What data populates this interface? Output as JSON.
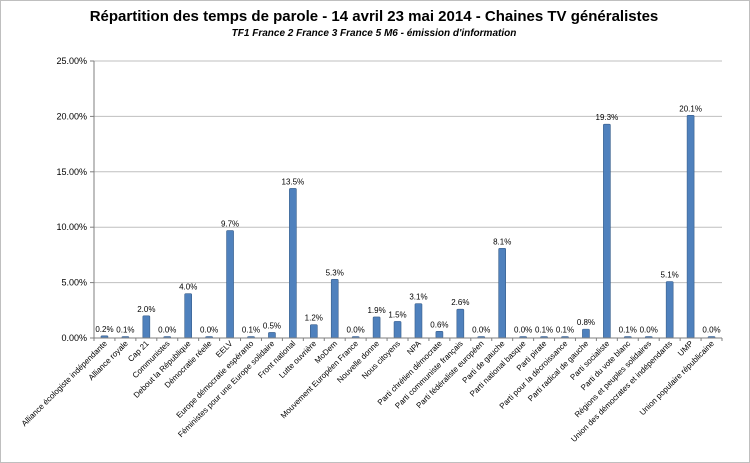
{
  "chart_data": {
    "type": "bar",
    "title": "Répartition des temps de parole - 14 avril 23 mai 2014 - Chaines TV généralistes",
    "subtitle": "TF1 France 2 France 3 France 5 M6 - émission d'information",
    "xlabel": "",
    "ylabel": "",
    "ylim": [
      0,
      25
    ],
    "yticks": [
      "0.00%",
      "5.00%",
      "10.00%",
      "15.00%",
      "20.00%",
      "25.00%"
    ],
    "grid": true,
    "legend": "none",
    "bar_color": "#4f81bd",
    "categories": [
      "Alliance écologiste indépendante",
      "Alliance royale",
      "Cap 21",
      "Communistes",
      "Debout la République",
      "Démocratie réelle",
      "EELV",
      "Europe démocratie espéranto",
      "Féministes pour une Europe solidaire",
      "Front national",
      "Lutte ouvrière",
      "MoDem",
      "Mouvement Européen France",
      "Nouvelle donne",
      "Nous citoyens",
      "NPA",
      "Parti chrétien démocrate",
      "Parti communiste français",
      "Parti fédéraliste européen",
      "Parti de gauche",
      "Parti national basque",
      "Parti pirate",
      "Parti pour la décroissance",
      "Parti radical de gauche",
      "Parti socialiste",
      "Parti du vote blanc",
      "Régions et peuples solidaires",
      "Union des démocrates et indépendants",
      "UMP",
      "Union populaire républicaine"
    ],
    "values": [
      0.2,
      0.1,
      2.0,
      0.0,
      4.0,
      0.0,
      9.7,
      0.1,
      0.5,
      13.5,
      1.2,
      5.3,
      0.0,
      1.9,
      1.5,
      3.1,
      0.6,
      2.6,
      0.0,
      8.1,
      0.0,
      0.1,
      0.1,
      0.8,
      19.3,
      0.1,
      0.0,
      5.1,
      20.1,
      0.0
    ],
    "data_labels": [
      "0.2%",
      "0.1%",
      "2.0%",
      "0.0%",
      "4.0%",
      "0.0%",
      "9.7%",
      "0.1%",
      "0.5%",
      "13.5%",
      "1.2%",
      "5.3%",
      "0.0%",
      "1.9%",
      "1.5%",
      "3.1%",
      "0.6%",
      "2.6%",
      "0.0%",
      "8.1%",
      "0.0%",
      "0.1%",
      "0.1%",
      "0.8%",
      "19.3%",
      "0.1%",
      "0.0%",
      "5.1%",
      "20.1%",
      "0.0%"
    ]
  }
}
